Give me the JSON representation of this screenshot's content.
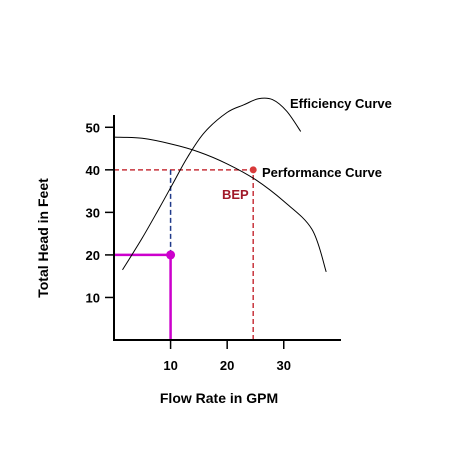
{
  "chart_data": {
    "type": "line",
    "xlabel": "Flow Rate in GPM",
    "ylabel": "Total Head in Feet",
    "xlim": [
      0,
      41
    ],
    "ylim": [
      0,
      59
    ],
    "x_ticks": [
      10,
      20,
      30
    ],
    "y_ticks": [
      10,
      20,
      30,
      40,
      50
    ],
    "grid": false,
    "series": [
      {
        "name": "Performance Curve",
        "color": "#000000",
        "x": [
          0,
          5,
          10,
          15,
          20,
          25,
          30,
          35,
          37.5
        ],
        "y": [
          47.7,
          47.4,
          46.1,
          44.2,
          41.4,
          37.7,
          32.6,
          26,
          16
        ]
      },
      {
        "name": "Efficiency Curve",
        "color": "#000000",
        "x": [
          1.5,
          5,
          8,
          10.5,
          13,
          16,
          20,
          23,
          25.5,
          28,
          30.5,
          33
        ],
        "y": [
          16.5,
          24,
          31,
          37,
          43,
          48.8,
          53.5,
          55.3,
          56.7,
          56.5,
          53.8,
          49
        ]
      }
    ],
    "annotations": [
      {
        "label": "BEP",
        "x": 24.6,
        "y": 40,
        "color": "#d83a3a"
      },
      {
        "label": "",
        "x": 10,
        "y": 20,
        "color": "#cc00cc"
      }
    ],
    "reference_lines": [
      {
        "kind": "horizontal",
        "y": 40,
        "x_from": 0,
        "x_to": 24.6,
        "style": "dashed",
        "color": "#c8343c"
      },
      {
        "kind": "vertical",
        "x": 24.6,
        "y_from": 0,
        "y_to": 40,
        "style": "dashed",
        "color": "#c8343c"
      },
      {
        "kind": "vertical",
        "x": 10,
        "y_from": 20,
        "y_to": 40,
        "style": "dashed",
        "color": "#1f3a8a"
      },
      {
        "kind": "horizontal",
        "y": 20,
        "x_from": 0,
        "x_to": 10,
        "style": "solid",
        "color": "#cc00cc"
      },
      {
        "kind": "vertical",
        "x": 10,
        "y_from": 0,
        "y_to": 20,
        "style": "solid",
        "color": "#cc00cc"
      }
    ]
  }
}
